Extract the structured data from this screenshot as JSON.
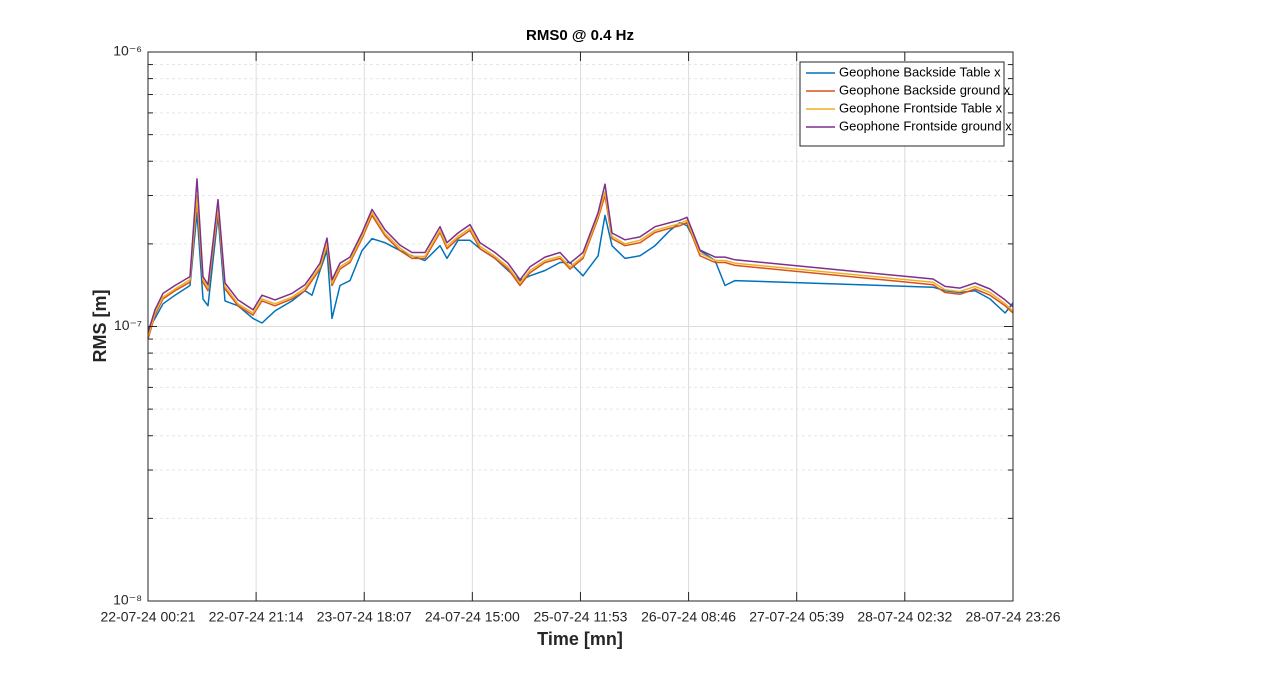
{
  "chart_data": {
    "type": "line",
    "title": "RMS0 @ 0.4 Hz",
    "xlabel": "Time [mn]",
    "ylabel": "RMS [m]",
    "log_y": true,
    "grid": true,
    "legend": "upper right",
    "xlim": [
      "22-07-24 00:21",
      "28-07-24 23:26"
    ],
    "xticks": [
      "22-07-24 00:21",
      "22-07-24 21:14",
      "23-07-24 18:07",
      "24-07-24 15:00",
      "25-07-24 11:53",
      "26-07-24 08:46",
      "27-07-24 05:39",
      "28-07-24 02:32",
      "28-07-24 23:26"
    ],
    "ylim": [
      1e-08,
      1e-06
    ],
    "yticks": [
      {
        "value": 1e-08,
        "label": "10⁻⁸"
      },
      {
        "value": 1e-07,
        "label": "10⁻⁷"
      },
      {
        "value": 1e-06,
        "label": "10⁻⁶"
      }
    ],
    "yminorticks": [
      2e-08,
      3e-08,
      4e-08,
      5e-08,
      6e-08,
      7e-08,
      8e-08,
      9e-08,
      2e-07,
      3e-07,
      4e-07,
      5e-07,
      6e-07,
      7e-07,
      8e-07,
      9e-07
    ],
    "x": [
      "22-07-24 00:21",
      "22-07-24 01:42",
      "22-07-24 03:15",
      "22-07-24 05:34",
      "22-07-24 08:28",
      "22-07-24 09:49",
      "22-07-24 10:58",
      "22-07-24 11:56",
      "22-07-24 13:52",
      "22-07-24 15:13",
      "22-07-24 17:44",
      "22-07-24 20:38",
      "22-07-24 22:22",
      "23-07-24 00:53",
      "23-07-24 04:10",
      "23-07-24 06:41",
      "23-07-24 08:02",
      "23-07-24 09:34",
      "23-07-24 10:56",
      "23-07-24 11:54",
      "23-07-24 13:26",
      "23-07-24 15:22",
      "23-07-24 17:41",
      "23-07-24 19:37",
      "23-07-24 22:08",
      "24-07-24 01:02",
      "24-07-24 03:21",
      "24-07-24 05:51",
      "24-07-24 08:45",
      "24-07-24 10:06",
      "24-07-24 12:14",
      "24-07-24 14:33",
      "24-07-24 16:29",
      "24-07-24 19:23",
      "24-07-24 21:53",
      "25-07-24 00:12",
      "25-07-24 02:08",
      "25-07-24 05:02",
      "25-07-24 07:56",
      "25-07-24 09:52",
      "25-07-24 12:23",
      "25-07-24 15:17",
      "25-07-24 16:38",
      "25-07-24 17:59",
      "25-07-24 20:29",
      "25-07-24 23:23",
      "26-07-24 02:17",
      "26-07-24 05:11",
      "26-07-24 07:07",
      "26-07-24 08:28",
      "26-07-24 10:59",
      "26-07-24 13:53",
      "26-07-24 15:48",
      "26-07-24 17:44",
      "28-07-24 07:59",
      "28-07-24 10:18",
      "28-07-24 13:12",
      "28-07-24 16:06",
      "28-07-24 19:00",
      "28-07-24 21:54",
      "28-07-24 23:26"
    ],
    "series": [
      {
        "name": "Geophone Backside Table x",
        "color": "#0072BD",
        "values": [
          9.8e-08,
          1.07e-07,
          1.21e-07,
          1.3e-07,
          1.41e-07,
          2.6e-07,
          1.26e-07,
          1.19e-07,
          2.54e-07,
          1.24e-07,
          1.19e-07,
          1.07e-07,
          1.03e-07,
          1.14e-07,
          1.24e-07,
          1.35e-07,
          1.3e-07,
          1.6e-07,
          1.89e-07,
          1.07e-07,
          1.41e-07,
          1.47e-07,
          1.89e-07,
          2.09e-07,
          2.02e-07,
          1.89e-07,
          1.81e-07,
          1.74e-07,
          1.97e-07,
          1.77e-07,
          2.06e-07,
          2.06e-07,
          1.92e-07,
          1.77e-07,
          1.6e-07,
          1.47e-07,
          1.53e-07,
          1.6e-07,
          1.71e-07,
          1.71e-07,
          1.53e-07,
          1.81e-07,
          2.54e-07,
          1.97e-07,
          1.77e-07,
          1.81e-07,
          1.97e-07,
          2.24e-07,
          2.39e-07,
          2.33e-07,
          1.89e-07,
          1.74e-07,
          1.41e-07,
          1.47e-07,
          1.39e-07,
          1.35e-07,
          1.33e-07,
          1.35e-07,
          1.26e-07,
          1.12e-07,
          1.22e-07
        ]
      },
      {
        "name": "Geophone Backside ground x",
        "color": "#D95319",
        "values": [
          9e-08,
          1.1e-07,
          1.26e-07,
          1.35e-07,
          1.45e-07,
          2.88e-07,
          1.45e-07,
          1.35e-07,
          2.65e-07,
          1.37e-07,
          1.19e-07,
          1.1e-07,
          1.24e-07,
          1.19e-07,
          1.26e-07,
          1.35e-07,
          1.47e-07,
          1.62e-07,
          1.97e-07,
          1.41e-07,
          1.62e-07,
          1.71e-07,
          2.09e-07,
          2.54e-07,
          2.14e-07,
          1.89e-07,
          1.77e-07,
          1.77e-07,
          2.2e-07,
          1.92e-07,
          2.09e-07,
          2.24e-07,
          1.92e-07,
          1.77e-07,
          1.62e-07,
          1.41e-07,
          1.57e-07,
          1.71e-07,
          1.77e-07,
          1.62e-07,
          1.77e-07,
          2.48e-07,
          3e-07,
          2.09e-07,
          1.97e-07,
          2.02e-07,
          2.2e-07,
          2.28e-07,
          2.33e-07,
          2.39e-07,
          1.81e-07,
          1.71e-07,
          1.71e-07,
          1.67e-07,
          1.42e-07,
          1.33e-07,
          1.31e-07,
          1.37e-07,
          1.3e-07,
          1.19e-07,
          1.12e-07
        ]
      },
      {
        "name": "Geophone Frontside Table x",
        "color": "#EDB120",
        "values": [
          9.2e-08,
          1.12e-07,
          1.28e-07,
          1.37e-07,
          1.48e-07,
          3e-07,
          1.48e-07,
          1.38e-07,
          2.75e-07,
          1.4e-07,
          1.21e-07,
          1.12e-07,
          1.26e-07,
          1.21e-07,
          1.28e-07,
          1.38e-07,
          1.5e-07,
          1.65e-07,
          2e-07,
          1.44e-07,
          1.65e-07,
          1.74e-07,
          2.13e-07,
          2.6e-07,
          2.18e-07,
          1.93e-07,
          1.8e-07,
          1.8e-07,
          2.24e-07,
          1.96e-07,
          2.13e-07,
          2.28e-07,
          1.96e-07,
          1.8e-07,
          1.65e-07,
          1.44e-07,
          1.6e-07,
          1.74e-07,
          1.8e-07,
          1.65e-07,
          1.8e-07,
          2.53e-07,
          3.1e-07,
          2.13e-07,
          2e-07,
          2.06e-07,
          2.24e-07,
          2.32e-07,
          2.37e-07,
          2.44e-07,
          1.85e-07,
          1.74e-07,
          1.74e-07,
          1.7e-07,
          1.45e-07,
          1.36e-07,
          1.34e-07,
          1.4e-07,
          1.33e-07,
          1.21e-07,
          1.14e-07
        ]
      },
      {
        "name": "Geophone Frontside ground x",
        "color": "#7E2F8E",
        "values": [
          9.5e-08,
          1.15e-07,
          1.32e-07,
          1.41e-07,
          1.52e-07,
          3.45e-07,
          1.52e-07,
          1.42e-07,
          2.9e-07,
          1.44e-07,
          1.25e-07,
          1.15e-07,
          1.3e-07,
          1.25e-07,
          1.32e-07,
          1.42e-07,
          1.54e-07,
          1.7e-07,
          2.1e-07,
          1.48e-07,
          1.7e-07,
          1.79e-07,
          2.19e-07,
          2.67e-07,
          2.25e-07,
          1.98e-07,
          1.86e-07,
          1.86e-07,
          2.31e-07,
          2.02e-07,
          2.19e-07,
          2.35e-07,
          2.02e-07,
          1.86e-07,
          1.7e-07,
          1.48e-07,
          1.65e-07,
          1.79e-07,
          1.86e-07,
          1.7e-07,
          1.86e-07,
          2.6e-07,
          3.3e-07,
          2.19e-07,
          2.07e-07,
          2.12e-07,
          2.31e-07,
          2.39e-07,
          2.44e-07,
          2.5e-07,
          1.9e-07,
          1.79e-07,
          1.79e-07,
          1.75e-07,
          1.49e-07,
          1.4e-07,
          1.38e-07,
          1.44e-07,
          1.37e-07,
          1.25e-07,
          1.18e-07
        ]
      }
    ]
  }
}
